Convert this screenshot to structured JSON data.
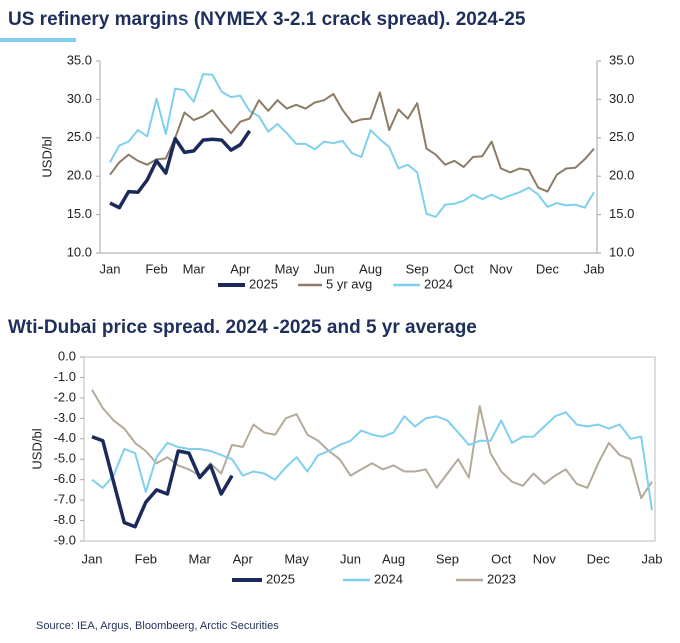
{
  "chart_data": [
    {
      "type": "line",
      "title": "US refinery margins (NYMEX 3-2.1 crack spread). 2024-25",
      "ylabel": "USD/bl",
      "categories": [
        "Jan",
        null,
        null,
        null,
        null,
        "Feb",
        null,
        null,
        null,
        "Mar",
        null,
        null,
        null,
        null,
        "Apr",
        null,
        null,
        null,
        null,
        "May",
        null,
        null,
        null,
        "Jun",
        null,
        null,
        null,
        null,
        "Aug",
        null,
        null,
        null,
        null,
        "Sep",
        null,
        null,
        null,
        null,
        "Oct",
        null,
        null,
        null,
        "Nov",
        null,
        null,
        null,
        null,
        "Dec",
        null,
        null,
        null,
        null,
        "Jab"
      ],
      "ylim": [
        10,
        35
      ],
      "yticks": [
        {
          "value": 10,
          "label": "10.0"
        },
        {
          "value": 15,
          "label": "15.0"
        },
        {
          "value": 20,
          "label": "20.0"
        },
        {
          "value": 25,
          "label": "25.0"
        },
        {
          "value": 30,
          "label": "30.0"
        },
        {
          "value": 35,
          "label": "35.0"
        }
      ],
      "y2lim": [
        10,
        35
      ],
      "y2ticks": [
        {
          "value": 10,
          "label": "10.0"
        },
        {
          "value": 15,
          "label": "15.0"
        },
        {
          "value": 20,
          "label": "20.0"
        },
        {
          "value": 25,
          "label": "25.0"
        },
        {
          "value": 30,
          "label": "30.0"
        },
        {
          "value": 35,
          "label": "35.0"
        }
      ],
      "legend": "bottom",
      "series": [
        {
          "name": "2025",
          "color": "#1b2a5a",
          "values": [
            16.5,
            15.9,
            18.0,
            17.9,
            19.5,
            22.0,
            20.4,
            24.9,
            23.1,
            23.3,
            24.7,
            24.8,
            24.7,
            23.4,
            24.1,
            25.9,
            null,
            null,
            null,
            null,
            null,
            null,
            null,
            null,
            null,
            null,
            null,
            null,
            null,
            null,
            null,
            null,
            null,
            null,
            null,
            null,
            null,
            null,
            null,
            null,
            null,
            null,
            null,
            null,
            null,
            null,
            null,
            null,
            null,
            null,
            null,
            null,
            null
          ]
        },
        {
          "name": "5 yr avg",
          "color": "#8c7b66",
          "values": [
            20.2,
            21.8,
            22.8,
            22.0,
            21.5,
            22.2,
            22.3,
            25.0,
            28.3,
            27.3,
            27.8,
            28.6,
            27.0,
            25.6,
            27.1,
            27.5,
            29.9,
            28.5,
            29.9,
            28.8,
            29.3,
            28.8,
            29.6,
            29.9,
            30.7,
            28.6,
            27.0,
            27.4,
            27.5,
            30.9,
            26.0,
            28.7,
            27.5,
            29.5,
            23.6,
            22.8,
            21.5,
            22.0,
            21.2,
            22.5,
            22.6,
            24.5,
            21.0,
            20.5,
            21.0,
            20.8,
            18.5,
            18.0,
            20.2,
            21.0,
            21.1,
            22.2,
            23.6
          ]
        },
        {
          "name": "2024",
          "color": "#7fd0ee",
          "values": [
            21.8,
            24.0,
            24.5,
            26.0,
            25.2,
            30.1,
            25.5,
            31.4,
            31.2,
            29.7,
            33.3,
            33.2,
            31.0,
            30.3,
            30.5,
            28.5,
            27.8,
            25.8,
            26.8,
            25.6,
            24.2,
            24.2,
            23.5,
            24.5,
            24.3,
            24.6,
            23.0,
            22.5,
            26.0,
            24.8,
            23.8,
            21.0,
            21.5,
            20.5,
            15.1,
            14.7,
            16.3,
            16.4,
            16.8,
            17.6,
            17.0,
            17.6,
            17.0,
            17.5,
            17.9,
            18.5,
            17.6,
            16.0,
            16.5,
            16.2,
            16.3,
            15.9,
            17.9
          ]
        }
      ]
    },
    {
      "type": "line",
      "title": "Wti-Dubai price spread. 2024 -2025 and 5 yr average",
      "ylabel": "USD/bl",
      "categories": [
        "Jan",
        null,
        null,
        null,
        null,
        "Feb",
        null,
        null,
        null,
        null,
        "Mar",
        null,
        null,
        null,
        "Apr",
        null,
        null,
        null,
        null,
        "May",
        null,
        null,
        null,
        null,
        "Jun",
        null,
        null,
        null,
        "Aug",
        null,
        null,
        null,
        null,
        "Sep",
        null,
        null,
        null,
        null,
        "Oct",
        null,
        null,
        null,
        "Nov",
        null,
        null,
        null,
        null,
        "Dec",
        null,
        null,
        null,
        null,
        "Jab"
      ],
      "ylim": [
        -9,
        0
      ],
      "yticks": [
        {
          "value": 0,
          "label": "0.0"
        },
        {
          "value": -1,
          "label": "-1.0"
        },
        {
          "value": -2,
          "label": "-2.0"
        },
        {
          "value": -3,
          "label": "-3.0"
        },
        {
          "value": -4,
          "label": "-4.0"
        },
        {
          "value": -5,
          "label": "-5.0"
        },
        {
          "value": -6,
          "label": "-6.0"
        },
        {
          "value": -7,
          "label": "-7.0"
        },
        {
          "value": -8,
          "label": "-8.0"
        },
        {
          "value": -9,
          "label": "-9.0"
        }
      ],
      "legend": "bottom",
      "series": [
        {
          "name": "2025",
          "color": "#1b2a5a",
          "values": [
            -3.9,
            -4.1,
            -6.1,
            -8.1,
            -8.3,
            -7.1,
            -6.5,
            -6.7,
            -4.6,
            -4.7,
            -5.9,
            -5.3,
            -6.7,
            -5.8,
            null,
            null,
            null,
            null,
            null,
            null,
            null,
            null,
            null,
            null,
            null,
            null,
            null,
            null,
            null,
            null,
            null,
            null,
            null,
            null,
            null,
            null,
            null,
            null,
            null,
            null,
            null,
            null,
            null,
            null,
            null,
            null,
            null,
            null,
            null,
            null,
            null,
            null,
            null
          ]
        },
        {
          "name": "2024",
          "color": "#7fd0ee",
          "values": [
            -6.0,
            -6.4,
            -5.8,
            -4.5,
            -4.7,
            -6.6,
            -4.9,
            -4.2,
            -4.4,
            -4.5,
            -4.5,
            -4.6,
            -4.8,
            -5.0,
            -5.8,
            -5.6,
            -5.7,
            -6.0,
            -5.4,
            -4.9,
            -5.6,
            -4.8,
            -4.6,
            -4.3,
            -4.1,
            -3.6,
            -3.8,
            -3.9,
            -3.7,
            -2.9,
            -3.4,
            -3.0,
            -2.9,
            -3.1,
            -3.7,
            -4.3,
            -4.1,
            -4.1,
            -3.1,
            -4.2,
            -3.9,
            -3.9,
            -3.4,
            -2.9,
            -2.7,
            -3.3,
            -3.4,
            -3.3,
            -3.5,
            -3.3,
            -4.0,
            -3.9,
            -7.5
          ]
        },
        {
          "name": "2023",
          "color": "#b5aa9a",
          "values": [
            -1.6,
            -2.5,
            -3.1,
            -3.5,
            -4.2,
            -4.6,
            -5.2,
            -4.9,
            -5.3,
            -5.5,
            -5.8,
            -5.2,
            -5.7,
            -4.3,
            -4.4,
            -3.3,
            -3.7,
            -3.8,
            -3.0,
            -2.8,
            -3.8,
            -4.1,
            -4.6,
            -5.0,
            -5.8,
            -5.5,
            -5.2,
            -5.5,
            -5.3,
            -5.6,
            -5.6,
            -5.5,
            -6.4,
            -5.7,
            -5.0,
            -5.9,
            -2.4,
            -4.7,
            -5.6,
            -6.1,
            -6.3,
            -5.7,
            -6.2,
            -5.8,
            -5.5,
            -6.2,
            -6.4,
            -5.2,
            -4.2,
            -4.8,
            -5.0,
            -6.9,
            -6.1
          ]
        }
      ]
    }
  ],
  "source": "Source: IEA, Argus, Bloombeerg, Arctic Securities"
}
